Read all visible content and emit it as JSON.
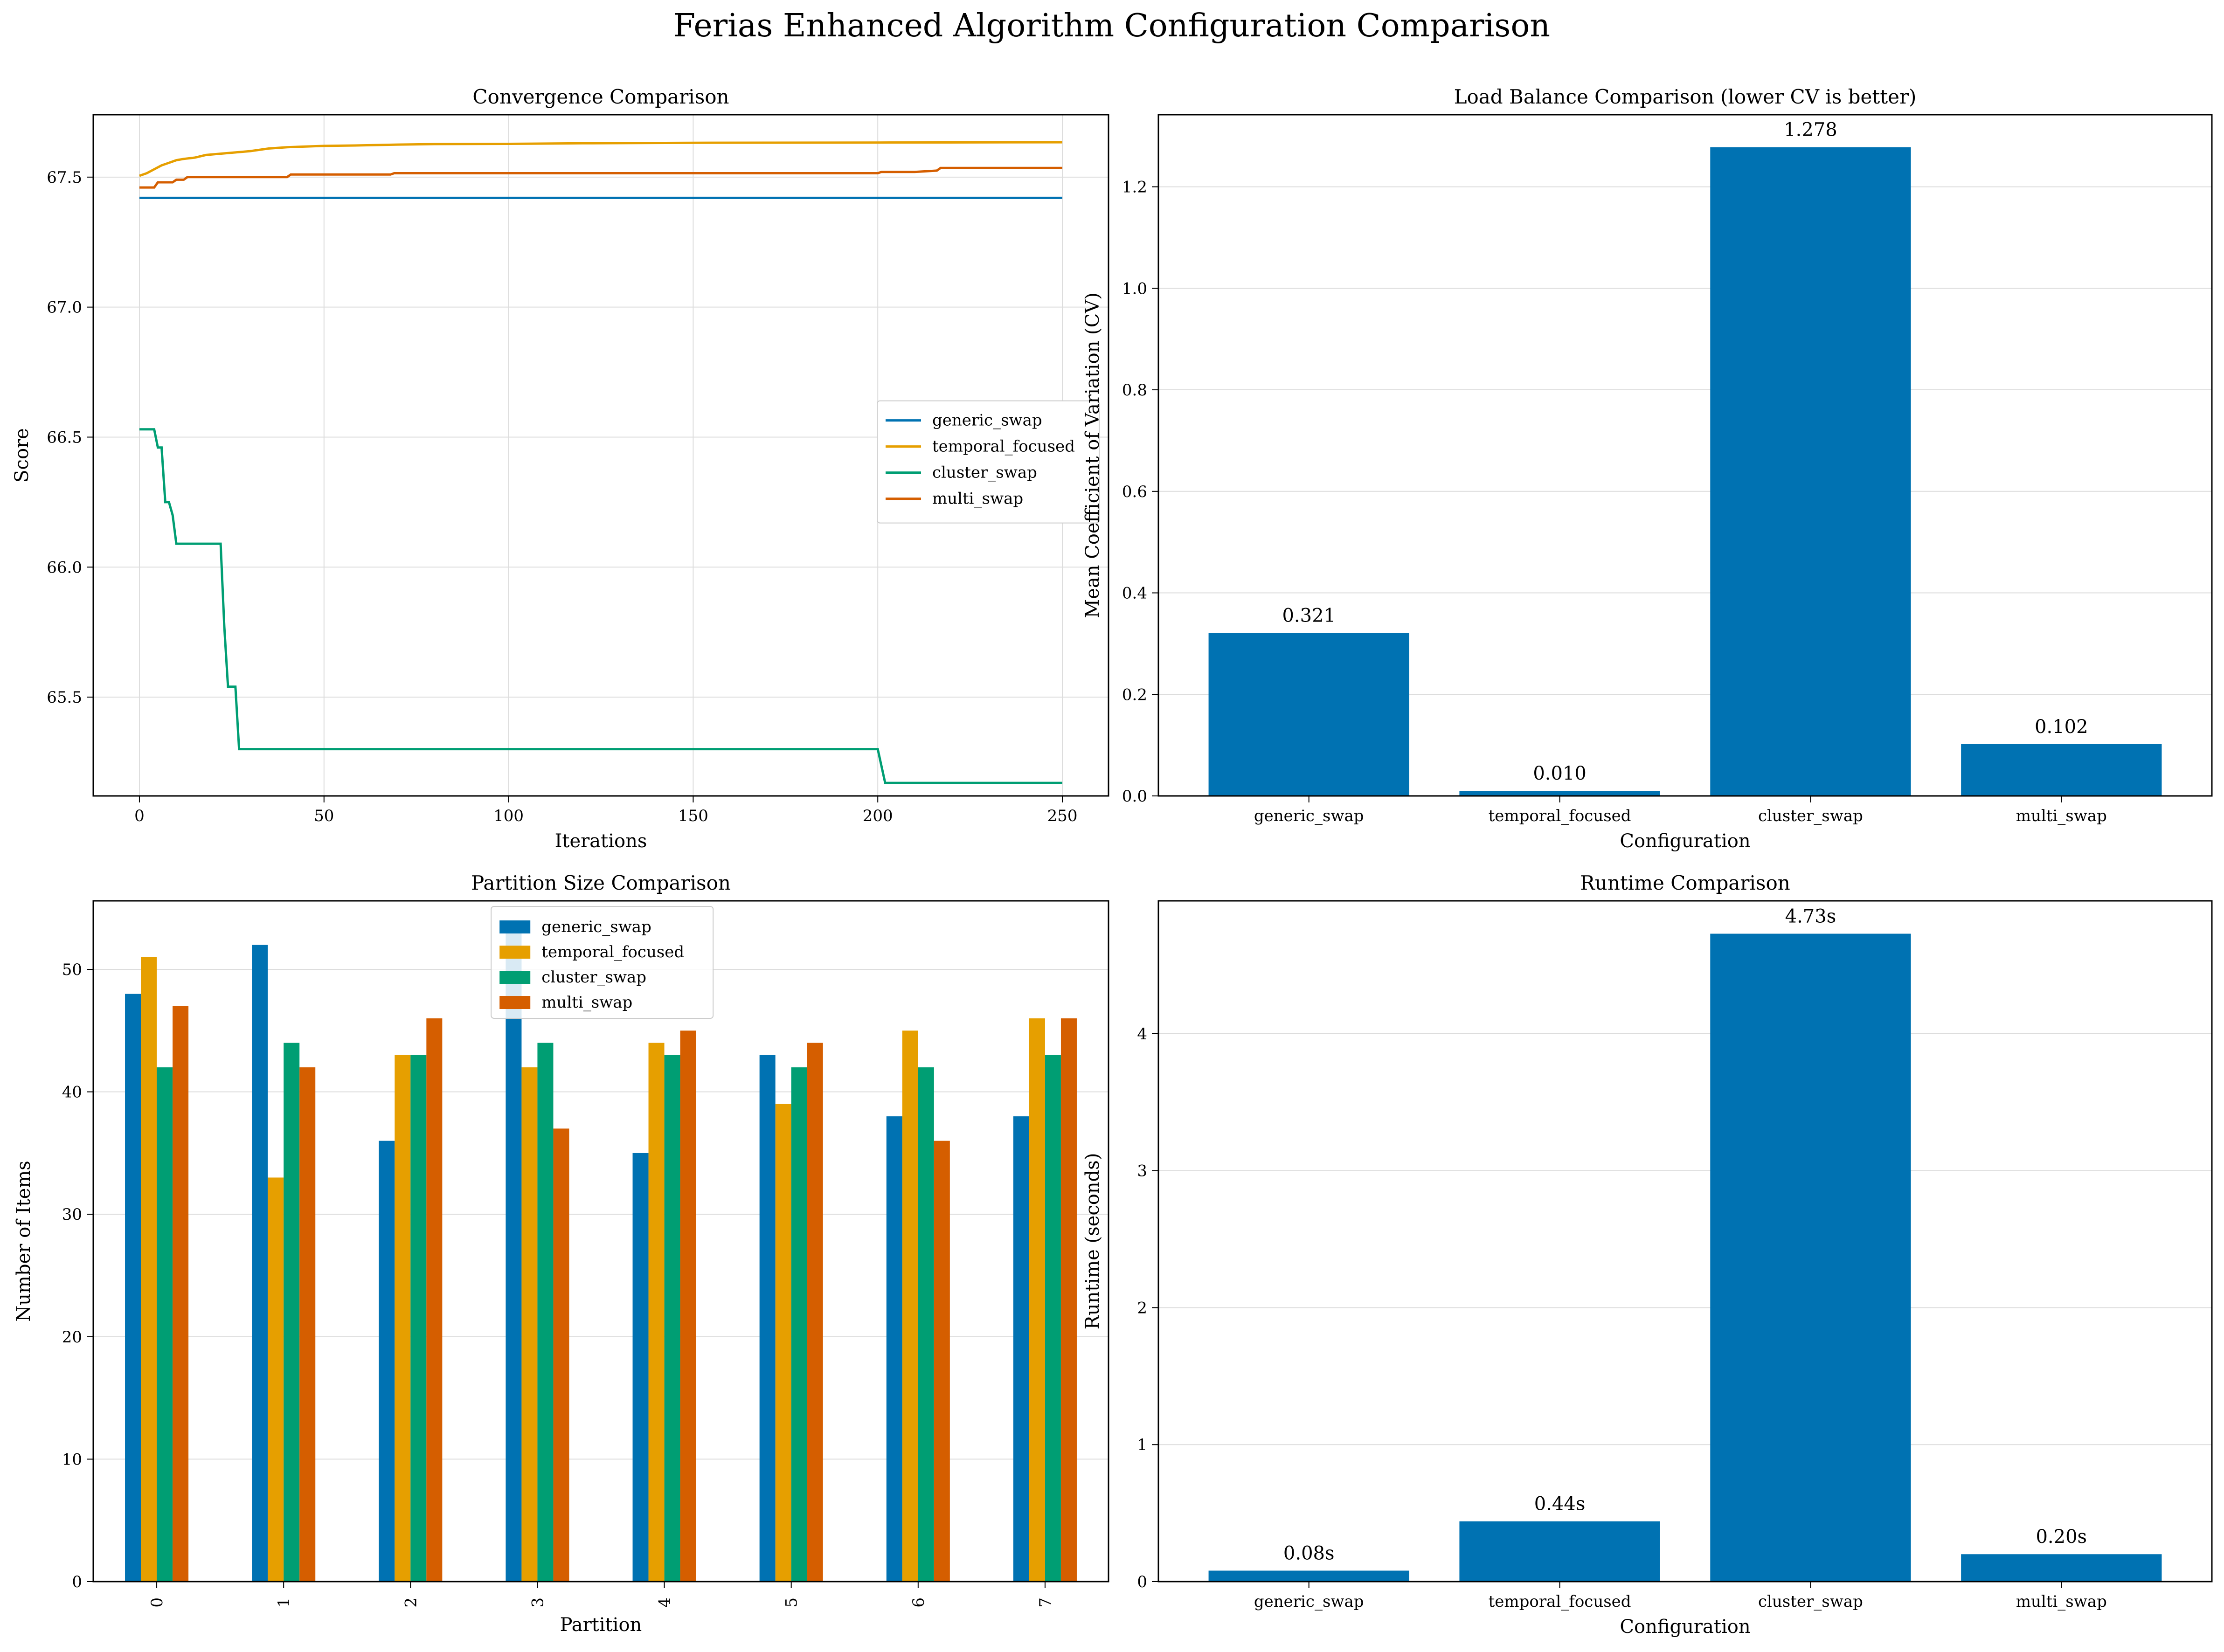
{
  "figure": {
    "title": "Ferias Enhanced Algorithm Configuration Comparison",
    "colors": {
      "blue": "#0072B2",
      "orange": "#E69F00",
      "green": "#009E73",
      "vermillion": "#D55E00"
    }
  },
  "chart_data": [
    {
      "id": "convergence",
      "type": "line",
      "title": "Convergence Comparison",
      "xlabel": "Iterations",
      "ylabel": "Score",
      "xlim": [
        -12.5,
        262.5
      ],
      "ylim": [
        65.12,
        67.74
      ],
      "xticks": [
        0,
        50,
        100,
        150,
        200,
        250
      ],
      "yticks": [
        65.5,
        66.0,
        66.5,
        67.0,
        67.5
      ],
      "ytick_labels": [
        "65.5",
        "66.0",
        "66.5",
        "67.0",
        "67.5"
      ],
      "grid": true,
      "legend": "center-right",
      "series": [
        {
          "name": "generic_swap",
          "color": "#0072B2",
          "x": [
            0,
            250
          ],
          "y": [
            67.42,
            67.42
          ]
        },
        {
          "name": "temporal_focused",
          "color": "#E69F00",
          "x": [
            0,
            2,
            4,
            6,
            8,
            10,
            12,
            15,
            18,
            22,
            26,
            30,
            35,
            40,
            50,
            60,
            70,
            80,
            100,
            120,
            150,
            200,
            250
          ],
          "y": [
            67.505,
            67.515,
            67.53,
            67.545,
            67.555,
            67.565,
            67.57,
            67.575,
            67.585,
            67.59,
            67.595,
            67.6,
            67.61,
            67.615,
            67.62,
            67.622,
            67.625,
            67.627,
            67.628,
            67.63,
            67.632,
            67.633,
            67.634
          ]
        },
        {
          "name": "cluster_swap",
          "color": "#009E73",
          "x": [
            0,
            4,
            5,
            6,
            7,
            8,
            9,
            10,
            22,
            23,
            24,
            26,
            27,
            200,
            202,
            250
          ],
          "y": [
            66.53,
            66.53,
            66.46,
            66.46,
            66.25,
            66.25,
            66.2,
            66.09,
            66.09,
            65.77,
            65.54,
            65.54,
            65.3,
            65.3,
            65.17,
            65.17
          ]
        },
        {
          "name": "multi_swap",
          "color": "#D55E00",
          "x": [
            0,
            4,
            5,
            9,
            10,
            12,
            13,
            40,
            41,
            68,
            69,
            200,
            201,
            210,
            216,
            217,
            250
          ],
          "y": [
            67.46,
            67.46,
            67.48,
            67.48,
            67.49,
            67.49,
            67.5,
            67.5,
            67.51,
            67.51,
            67.515,
            67.515,
            67.52,
            67.52,
            67.525,
            67.535,
            67.535
          ]
        }
      ]
    },
    {
      "id": "load_balance",
      "type": "bar",
      "title": "Load Balance Comparison (lower CV is better)",
      "xlabel": "Configuration",
      "ylabel": "Mean Coefficient of Variation (CV)",
      "categories": [
        "generic_swap",
        "temporal_focused",
        "cluster_swap",
        "multi_swap"
      ],
      "values": [
        0.321,
        0.01,
        1.278,
        0.102
      ],
      "value_labels": [
        "0.321",
        "0.010",
        "1.278",
        "0.102"
      ],
      "ylim": [
        0,
        1.342
      ],
      "yticks": [
        0.0,
        0.2,
        0.4,
        0.6,
        0.8,
        1.0,
        1.2
      ],
      "ytick_labels": [
        "0.0",
        "0.2",
        "0.4",
        "0.6",
        "0.8",
        "1.0",
        "1.2"
      ],
      "grid": true,
      "color": "#0072B2"
    },
    {
      "id": "partition_size",
      "type": "bar",
      "title": "Partition Size Comparison",
      "xlabel": "Partition",
      "ylabel": "Number of Items",
      "categories": [
        "0",
        "1",
        "2",
        "3",
        "4",
        "5",
        "6",
        "7"
      ],
      "ylim": [
        0,
        55.6
      ],
      "yticks": [
        0,
        10,
        20,
        30,
        40,
        50
      ],
      "ytick_labels": [
        "0",
        "10",
        "20",
        "30",
        "40",
        "50"
      ],
      "grid": true,
      "legend": "top-center",
      "series": [
        {
          "name": "generic_swap",
          "color": "#0072B2",
          "values": [
            48,
            52,
            36,
            53,
            35,
            43,
            38,
            38
          ]
        },
        {
          "name": "temporal_focused",
          "color": "#E69F00",
          "values": [
            51,
            33,
            43,
            42,
            44,
            39,
            45,
            46
          ]
        },
        {
          "name": "cluster_swap",
          "color": "#009E73",
          "values": [
            42,
            44,
            43,
            44,
            43,
            42,
            42,
            43
          ]
        },
        {
          "name": "multi_swap",
          "color": "#D55E00",
          "values": [
            47,
            42,
            46,
            37,
            45,
            44,
            36,
            46
          ]
        }
      ]
    },
    {
      "id": "runtime",
      "type": "bar",
      "title": "Runtime Comparison",
      "xlabel": "Configuration",
      "ylabel": "Runtime (seconds)",
      "categories": [
        "generic_swap",
        "temporal_focused",
        "cluster_swap",
        "multi_swap"
      ],
      "values": [
        0.08,
        0.44,
        4.73,
        0.2
      ],
      "value_labels": [
        "0.08s",
        "0.44s",
        "4.73s",
        "0.20s"
      ],
      "ylim": [
        0,
        4.97
      ],
      "yticks": [
        0,
        1,
        2,
        3,
        4
      ],
      "ytick_labels": [
        "0",
        "1",
        "2",
        "3",
        "4"
      ],
      "grid": true,
      "color": "#0072B2"
    }
  ]
}
